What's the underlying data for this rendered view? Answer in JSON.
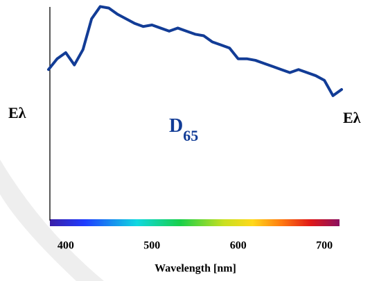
{
  "chart_data": {
    "type": "line",
    "ylabel": "Eλ",
    "y2label": "Eλ",
    "annotation": {
      "text": "D",
      "subscript": "65"
    },
    "xlabel": "Wavelength [nm]",
    "x": [
      380,
      390,
      400,
      410,
      420,
      430,
      440,
      450,
      460,
      470,
      480,
      490,
      500,
      510,
      520,
      530,
      540,
      550,
      560,
      570,
      580,
      590,
      600,
      610,
      620,
      630,
      640,
      650,
      660,
      670,
      680,
      690,
      700,
      710,
      720
    ],
    "series": [
      {
        "color": "#123c96",
        "values": [
          97,
          104,
          108,
          100,
          110,
          130,
          138,
          137,
          133,
          130,
          127,
          125,
          126,
          124,
          122,
          124,
          122,
          120,
          119,
          115,
          113,
          111,
          104,
          104,
          103,
          101,
          99,
          97,
          95,
          97,
          95,
          93,
          90,
          80,
          84
        ]
      }
    ],
    "xlim": [
      380,
      720
    ],
    "xticks": [
      400,
      500,
      600,
      700
    ],
    "ylim": [
      0,
      140
    ]
  }
}
